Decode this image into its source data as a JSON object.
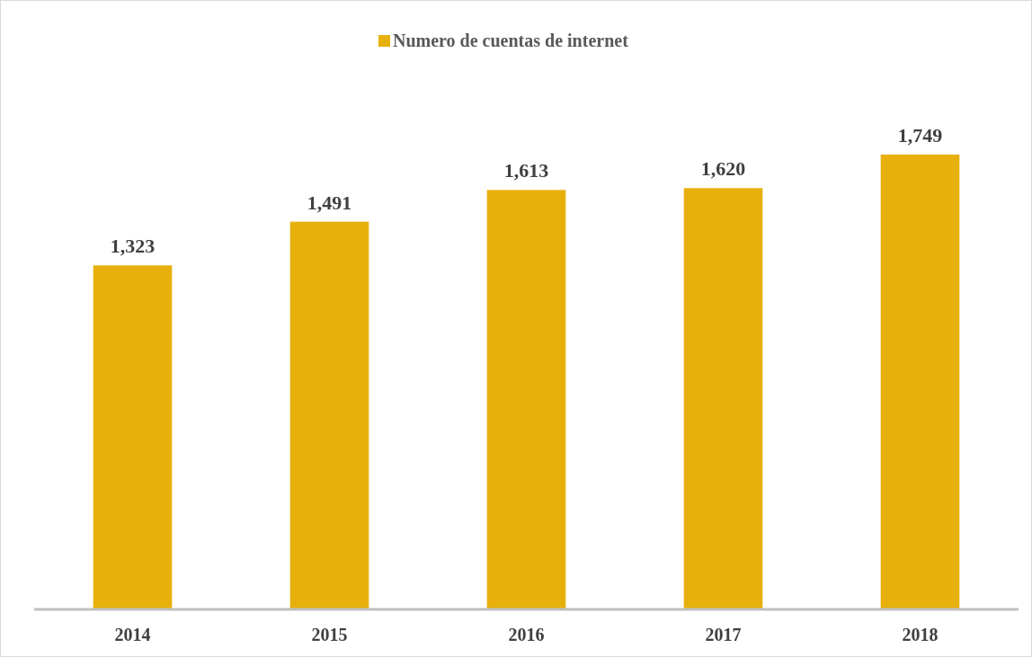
{
  "chart_data": {
    "type": "bar",
    "categories": [
      "2014",
      "2015",
      "2016",
      "2017",
      "2018"
    ],
    "series": [
      {
        "name": "Numero de cuentas de internet",
        "color": "#e8b00c",
        "values": [
          1323,
          1491,
          1613,
          1620,
          1749
        ],
        "value_labels": [
          "1,323",
          "1,491",
          "1,613",
          "1,620",
          "1,749"
        ]
      }
    ],
    "tick_labels": "x",
    "legend": "top"
  }
}
